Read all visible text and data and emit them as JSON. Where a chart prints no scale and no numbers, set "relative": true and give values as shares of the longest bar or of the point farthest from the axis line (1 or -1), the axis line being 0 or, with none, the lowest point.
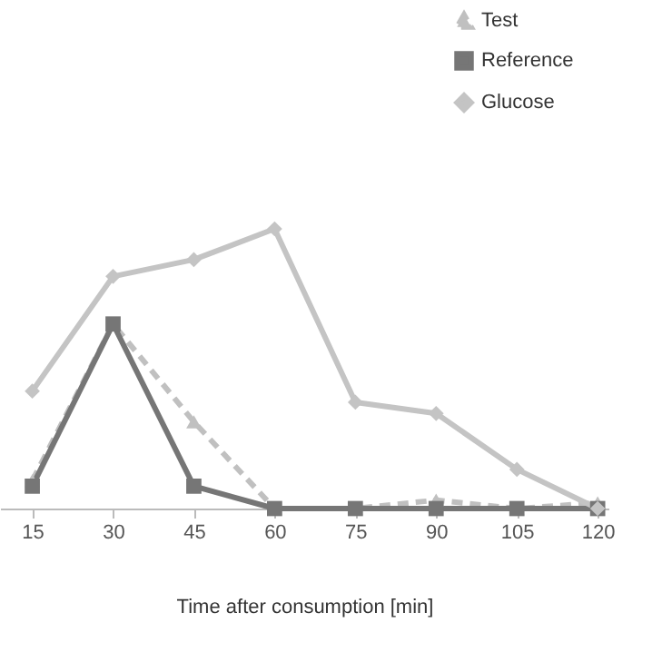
{
  "chart_data": {
    "type": "line",
    "relative": true,
    "xlabel": "Time after consumption [min]",
    "x": [
      15,
      30,
      45,
      60,
      75,
      90,
      105,
      120
    ],
    "xlim": [
      9,
      122
    ],
    "xticks": [
      15,
      30,
      45,
      60,
      75,
      90,
      105,
      120
    ],
    "tick_labels": "x",
    "grid": false,
    "legend": "top right",
    "series": [
      {
        "name": "Test",
        "color": "#c0c0c0",
        "marker": "triangle",
        "line_style": "dashed",
        "values": [
          0.1,
          0.66,
          0.31,
          0,
          0,
          0.03,
          0,
          0.02
        ]
      },
      {
        "name": "Reference",
        "color": "#767676",
        "marker": "square",
        "line_style": "solid",
        "values": [
          0.08,
          0.66,
          0.08,
          0,
          0,
          0,
          0,
          0
        ]
      },
      {
        "name": "Glucose",
        "color": "#c4c4c4",
        "marker": "diamond",
        "line_style": "solid",
        "values": [
          0.42,
          0.83,
          0.89,
          1,
          0.38,
          0.34,
          0.14,
          0
        ]
      }
    ]
  }
}
